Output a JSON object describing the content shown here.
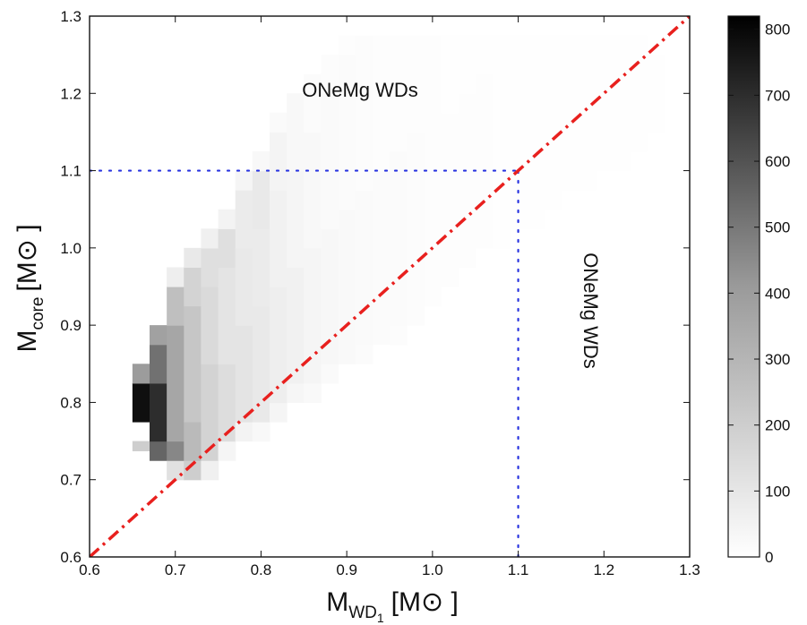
{
  "chart_data": {
    "type": "heatmap",
    "xlabel": {
      "main": "M",
      "sub": "WD",
      "subsub": "1",
      "unit": "[M⊙ ]"
    },
    "ylabel": {
      "main": "M",
      "sub": "core",
      "unit": "[M⊙ ]"
    },
    "xlim": [
      0.6,
      1.3
    ],
    "ylim": [
      0.6,
      1.3
    ],
    "xticks": [
      "0.6",
      "0.7",
      "0.8",
      "0.9",
      "1.0",
      "1.1",
      "1.2",
      "1.3"
    ],
    "yticks": [
      "0.6",
      "0.7",
      "0.8",
      "0.9",
      "1.0",
      "1.1",
      "1.2",
      "1.3"
    ],
    "colorbar": {
      "range": [
        0,
        820
      ],
      "ticks": [
        "0",
        "100",
        "200",
        "300",
        "400",
        "500",
        "600",
        "700",
        "800"
      ]
    },
    "annotations": [
      "ONeMg WDs",
      "ONeMg WDs"
    ],
    "reference_lines": {
      "diagonal": {
        "from": [
          0.6,
          0.6
        ],
        "to": [
          1.3,
          1.3
        ],
        "color": "#e8201e",
        "style": "dash-dot"
      },
      "vertical": {
        "x": 1.1,
        "from_y": 0.6,
        "to_y": 1.1,
        "color": "#2a35e0",
        "style": "dotted"
      },
      "horizontal": {
        "y": 1.1,
        "from_x": 0.6,
        "to_x": 1.1,
        "color": "#2a35e0",
        "style": "dotted"
      }
    },
    "bin_width": 0.02,
    "bin_height": 0.025,
    "columns": [
      {
        "x": 0.66,
        "bins": [
          [
            0.75,
            0.7375,
            200
          ],
          [
            0.775,
            0.825,
            780
          ],
          [
            0.825,
            0.85,
            400
          ]
        ]
      },
      {
        "x": 0.68,
        "bins": [
          [
            0.725,
            0.75,
            550
          ],
          [
            0.75,
            0.825,
            700
          ],
          [
            0.825,
            0.875,
            520
          ],
          [
            0.875,
            0.9,
            380
          ]
        ]
      },
      {
        "x": 0.7,
        "bins": [
          [
            0.7,
            0.725,
            120
          ],
          [
            0.725,
            0.75,
            460
          ],
          [
            0.75,
            0.9,
            360
          ],
          [
            0.9,
            0.95,
            260
          ],
          [
            0.95,
            0.975,
            70
          ]
        ]
      },
      {
        "x": 0.72,
        "bins": [
          [
            0.7,
            0.725,
            200
          ],
          [
            0.725,
            0.775,
            280
          ],
          [
            0.775,
            0.925,
            230
          ],
          [
            0.925,
            0.975,
            180
          ],
          [
            0.975,
            1.0,
            90
          ]
        ]
      },
      {
        "x": 0.74,
        "bins": [
          [
            0.7,
            0.725,
            60
          ],
          [
            0.725,
            0.85,
            180
          ],
          [
            0.85,
            0.95,
            150
          ],
          [
            0.95,
            1.0,
            130
          ],
          [
            1.0,
            1.025,
            60
          ]
        ]
      },
      {
        "x": 0.76,
        "bins": [
          [
            0.725,
            0.75,
            40
          ],
          [
            0.75,
            0.85,
            140
          ],
          [
            0.85,
            0.975,
            110
          ],
          [
            0.975,
            1.025,
            130
          ],
          [
            1.025,
            1.05,
            50
          ]
        ]
      },
      {
        "x": 0.78,
        "bins": [
          [
            0.75,
            0.775,
            50
          ],
          [
            0.775,
            0.9,
            110
          ],
          [
            0.9,
            1.0,
            90
          ],
          [
            1.0,
            1.075,
            80
          ],
          [
            1.075,
            1.1,
            40
          ]
        ]
      },
      {
        "x": 0.8,
        "bins": [
          [
            0.75,
            0.775,
            30
          ],
          [
            0.775,
            0.925,
            90
          ],
          [
            0.925,
            1.025,
            80
          ],
          [
            1.025,
            1.1,
            90
          ],
          [
            1.1,
            1.125,
            30
          ]
        ]
      },
      {
        "x": 0.82,
        "bins": [
          [
            0.775,
            0.8,
            40
          ],
          [
            0.8,
            0.95,
            70
          ],
          [
            0.95,
            1.075,
            55
          ],
          [
            1.075,
            1.15,
            45
          ],
          [
            1.15,
            1.175,
            20
          ]
        ]
      },
      {
        "x": 0.84,
        "bins": [
          [
            0.8,
            0.825,
            35
          ],
          [
            0.825,
            0.975,
            55
          ],
          [
            0.975,
            1.1,
            40
          ],
          [
            1.1,
            1.2,
            30
          ]
        ]
      },
      {
        "x": 0.86,
        "bins": [
          [
            0.8,
            0.825,
            25
          ],
          [
            0.825,
            1.0,
            42
          ],
          [
            1.0,
            1.15,
            30
          ],
          [
            1.15,
            1.225,
            18
          ]
        ]
      },
      {
        "x": 0.88,
        "bins": [
          [
            0.825,
            0.85,
            20
          ],
          [
            0.85,
            1.025,
            34
          ],
          [
            1.025,
            1.2,
            22
          ],
          [
            1.2,
            1.25,
            12
          ]
        ]
      },
      {
        "x": 0.9,
        "bins": [
          [
            0.85,
            1.05,
            26
          ],
          [
            1.05,
            1.25,
            16
          ],
          [
            1.25,
            1.275,
            8
          ]
        ]
      },
      {
        "x": 0.92,
        "bins": [
          [
            0.85,
            0.875,
            16
          ],
          [
            0.875,
            1.075,
            22
          ],
          [
            1.075,
            1.275,
            12
          ]
        ]
      },
      {
        "x": 0.94,
        "bins": [
          [
            0.875,
            1.1,
            18
          ],
          [
            1.1,
            1.275,
            10
          ]
        ]
      },
      {
        "x": 0.96,
        "bins": [
          [
            0.875,
            0.9,
            12
          ],
          [
            0.9,
            1.125,
            15
          ],
          [
            1.125,
            1.275,
            9
          ]
        ]
      },
      {
        "x": 0.98,
        "bins": [
          [
            0.9,
            1.15,
            12
          ],
          [
            1.15,
            1.275,
            8
          ]
        ]
      },
      {
        "x": 1.0,
        "bins": [
          [
            0.925,
            1.15,
            10
          ],
          [
            1.15,
            1.275,
            7
          ]
        ]
      },
      {
        "x": 1.02,
        "bins": [
          [
            0.95,
            1.175,
            9
          ],
          [
            1.175,
            1.275,
            6
          ]
        ]
      },
      {
        "x": 1.04,
        "bins": [
          [
            0.975,
            1.2,
            8
          ],
          [
            1.2,
            1.275,
            6
          ]
        ]
      },
      {
        "x": 1.06,
        "bins": [
          [
            1.0,
            1.225,
            7
          ],
          [
            1.225,
            1.275,
            5
          ]
        ]
      },
      {
        "x": 1.08,
        "bins": [
          [
            1.0,
            1.25,
            6
          ],
          [
            1.25,
            1.275,
            5
          ]
        ]
      },
      {
        "x": 1.1,
        "bins": [
          [
            1.025,
            1.275,
            6
          ]
        ]
      },
      {
        "x": 1.12,
        "bins": [
          [
            1.025,
            1.275,
            5
          ]
        ]
      },
      {
        "x": 1.14,
        "bins": [
          [
            1.05,
            1.275,
            5
          ]
        ]
      },
      {
        "x": 1.16,
        "bins": [
          [
            1.075,
            1.275,
            5
          ]
        ]
      },
      {
        "x": 1.18,
        "bins": [
          [
            1.075,
            1.275,
            4
          ]
        ]
      },
      {
        "x": 1.2,
        "bins": [
          [
            1.1,
            1.275,
            4
          ]
        ]
      },
      {
        "x": 1.22,
        "bins": [
          [
            1.1,
            1.275,
            4
          ]
        ]
      },
      {
        "x": 1.24,
        "bins": [
          [
            1.125,
            1.275,
            3
          ]
        ]
      },
      {
        "x": 1.26,
        "bins": [
          [
            1.15,
            1.25,
            3
          ]
        ]
      }
    ]
  }
}
